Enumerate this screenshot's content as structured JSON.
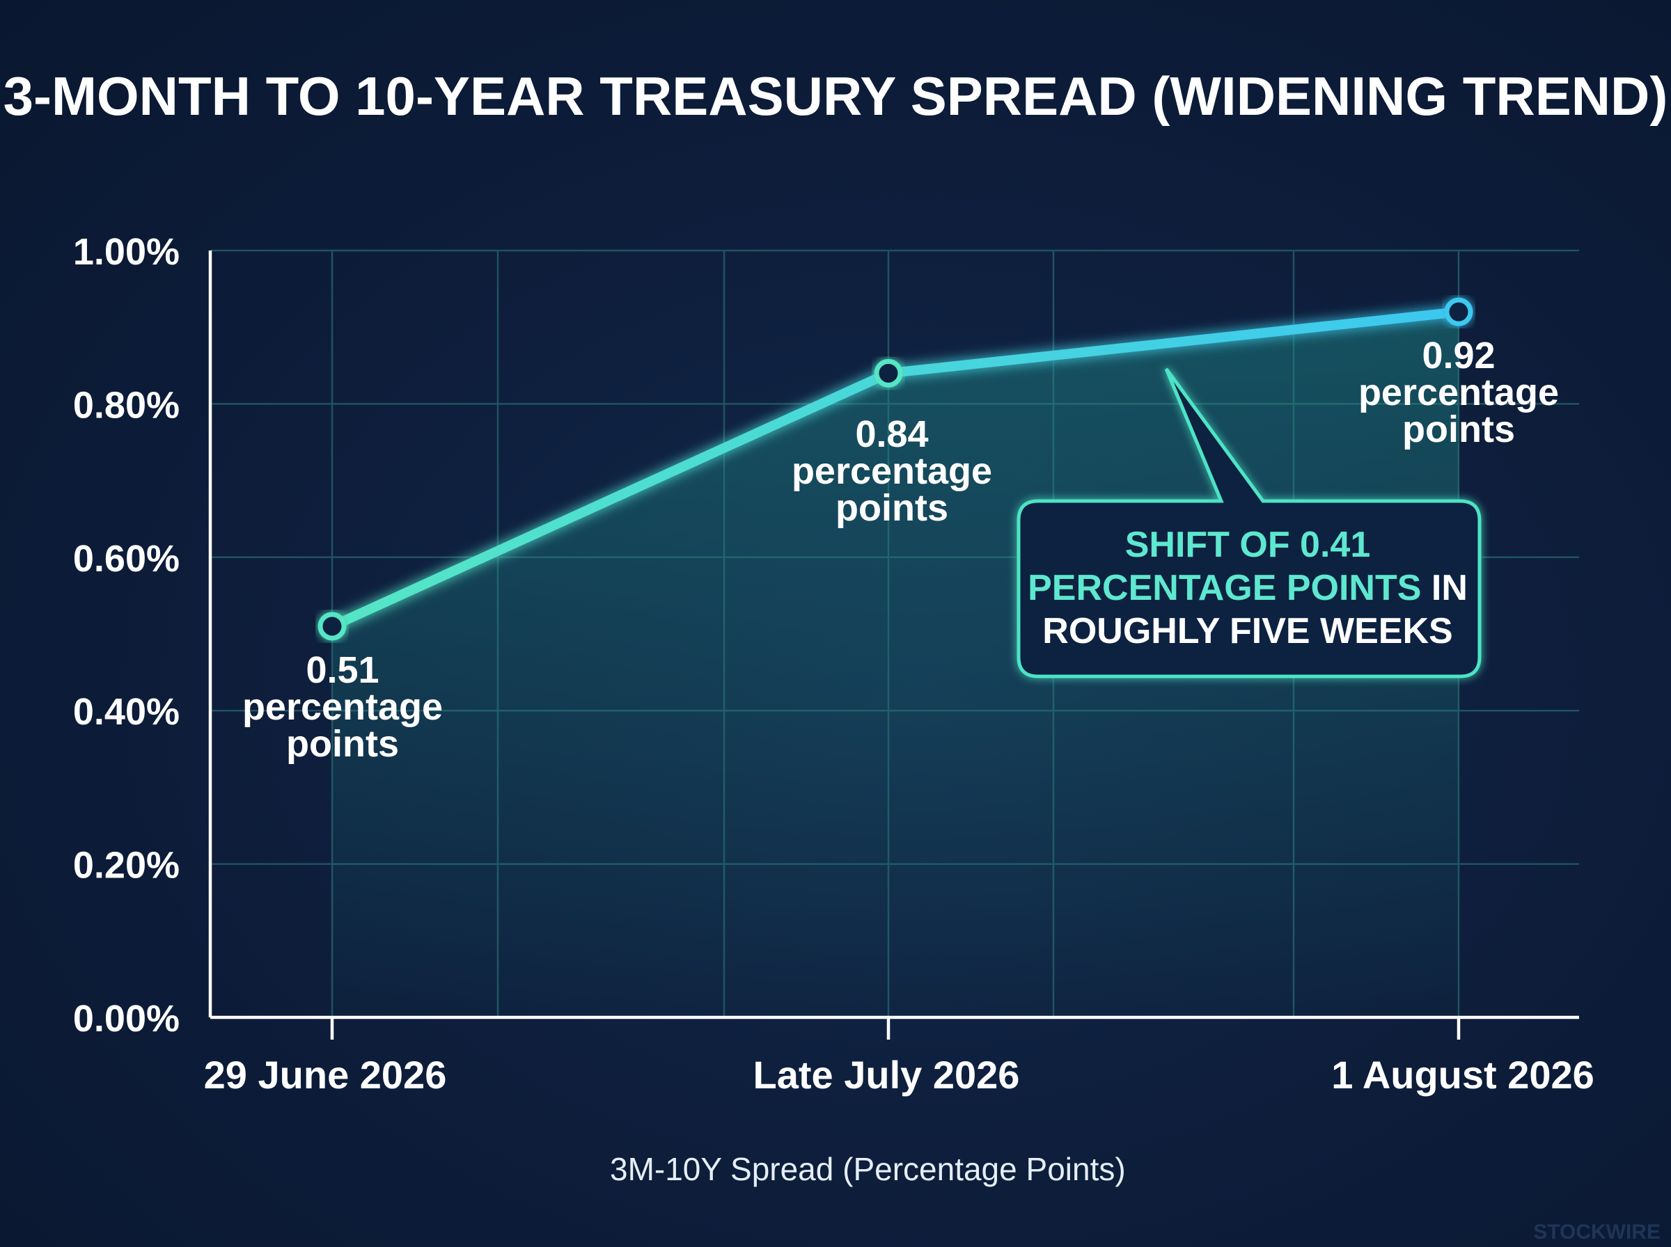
{
  "chart_data": {
    "type": "line",
    "title": "3-MONTH TO 10-YEAR TREASURY SPREAD (WIDENING TREND)",
    "xlabel": "",
    "ylabel": "",
    "categories": [
      "29 June 2026",
      "Late July 2026",
      "1 August 2026"
    ],
    "series": [
      {
        "name": "3M-10Y Spread (Percentage Points)",
        "values": [
          0.51,
          0.84,
          0.92
        ],
        "color": "#4ee3c6"
      }
    ],
    "data_labels": [
      [
        "0.51",
        "percentage",
        "points"
      ],
      [
        "0.84",
        "percentage",
        "points"
      ],
      [
        "0.92",
        "percentage",
        "points"
      ]
    ],
    "y_ticks": [
      "0.00%",
      "0.20%",
      "0.40%",
      "0.60%",
      "0.80%",
      "1.00%"
    ],
    "ylim": [
      0,
      1.0
    ],
    "grid": true,
    "legend_position": "bottom-center",
    "annotation": {
      "accent_lines": [
        "SHIFT OF 0.41",
        "PERCENTAGE POINTS"
      ],
      "line2_suffix": " IN",
      "line3": "ROUGHLY FIVE WEEKS",
      "accent_color": "#5ee8cf",
      "border_color": "#4ee3c6"
    },
    "colors": {
      "background": "#0c1a33",
      "grid": "#1f5360",
      "axis": "#ffffff",
      "line_start": "#55e6c5",
      "line_end": "#3cc8f0"
    }
  },
  "watermark": "STOCKWIRE"
}
